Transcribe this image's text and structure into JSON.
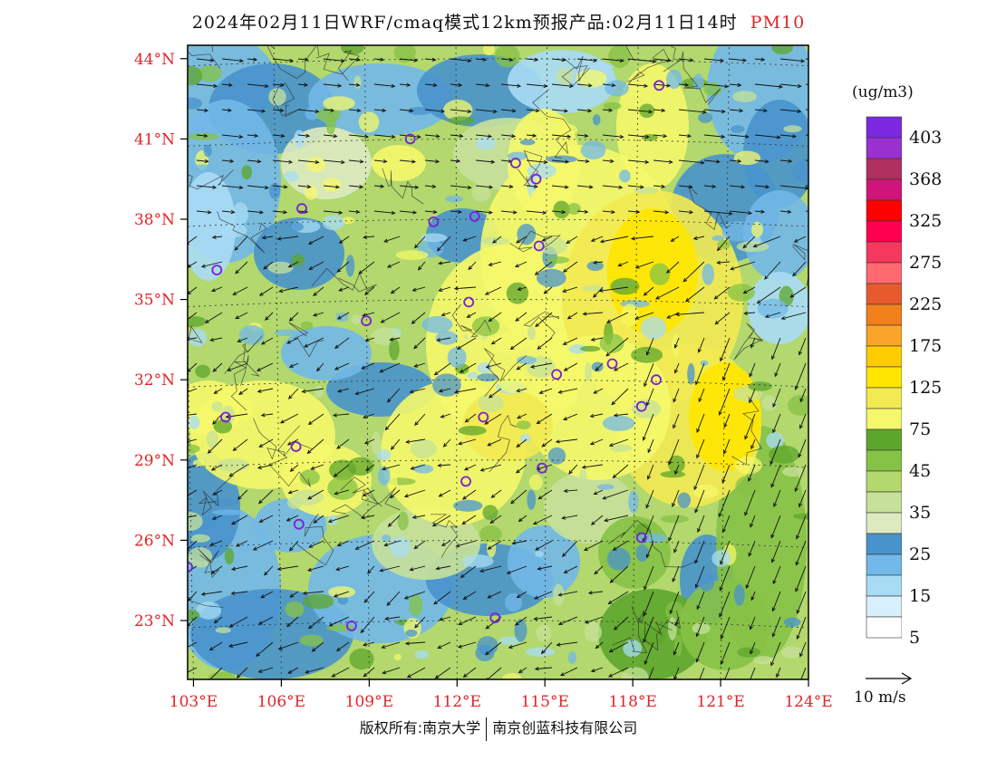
{
  "header": {
    "title": "2024年02月11日WRF/cmaq模式12km预报产品:02月11日14时",
    "species": "PM10"
  },
  "map": {
    "lon_range": [
      102.8,
      124
    ],
    "lat_range": [
      20.8,
      44.5
    ],
    "lon_ticks": [
      "103°E",
      "106°E",
      "109°E",
      "112°E",
      "115°E",
      "118°E",
      "121°E",
      "124°E"
    ],
    "lat_ticks": [
      "23°N",
      "26°N",
      "29°N",
      "32°N",
      "35°N",
      "38°N",
      "41°N",
      "44°N"
    ],
    "station_markers": [
      [
        118.9,
        43.0
      ],
      [
        110.4,
        41.0
      ],
      [
        114.0,
        40.1
      ],
      [
        114.7,
        39.5
      ],
      [
        111.2,
        37.9
      ],
      [
        112.6,
        38.1
      ],
      [
        106.7,
        38.4
      ],
      [
        103.8,
        36.1
      ],
      [
        114.8,
        37.0
      ],
      [
        112.4,
        34.9
      ],
      [
        108.9,
        34.2
      ],
      [
        115.4,
        32.2
      ],
      [
        117.3,
        32.6
      ],
      [
        118.8,
        32.0
      ],
      [
        104.1,
        30.6
      ],
      [
        112.9,
        30.6
      ],
      [
        118.3,
        31.0
      ],
      [
        106.5,
        29.5
      ],
      [
        112.3,
        28.2
      ],
      [
        114.9,
        28.7
      ],
      [
        106.6,
        26.6
      ],
      [
        118.3,
        26.1
      ],
      [
        102.8,
        25.0
      ],
      [
        108.4,
        22.8
      ],
      [
        113.3,
        23.1
      ]
    ],
    "marker_color": "#7b1fd6",
    "tick_color": "#e0242a"
  },
  "legend": {
    "unit": "(ug/m3)",
    "colors": [
      "#ffffff",
      "#d8f0fb",
      "#a8dcf5",
      "#72b8e8",
      "#4893cc",
      "#ddeac0",
      "#c6e19a",
      "#b2d86e",
      "#86c246",
      "#5da62c",
      "#f4f86a",
      "#f2ea52",
      "#ffe600",
      "#ffcc00",
      "#f8a52a",
      "#f2801a",
      "#e85a2e",
      "#ff6a70",
      "#f4385e",
      "#ff0050",
      "#ff0000",
      "#d0157a",
      "#b03060",
      "#9a30d0",
      "#7c28e0"
    ],
    "labels": [
      "5",
      "15",
      "25",
      "35",
      "45",
      "75",
      "125",
      "175",
      "225",
      "275",
      "325",
      "368",
      "403"
    ]
  },
  "wind_reference": "10 m/s",
  "footer": {
    "left": "版权所有:南京大学",
    "right": "南京创蓝科技有限公司"
  }
}
